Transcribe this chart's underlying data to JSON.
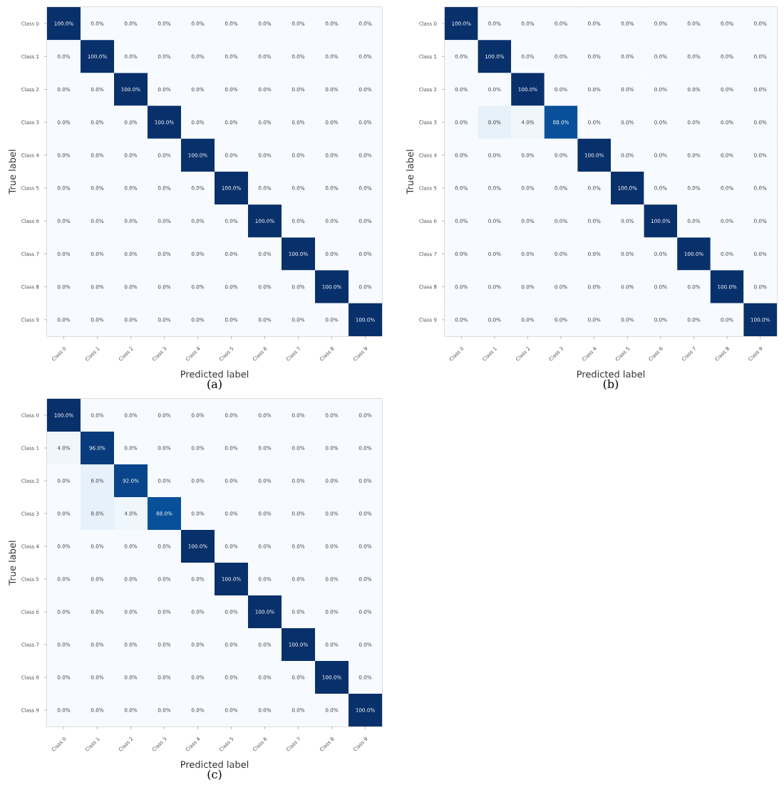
{
  "chart_data": [
    {
      "type": "heatmap",
      "xlabel": "Predicted label",
      "ylabel": "True label",
      "annotations": [
        "(a)"
      ],
      "categories": [
        "Class 0",
        "Class 1",
        "Class 2",
        "Class 3",
        "Class 4",
        "Class 5",
        "Class 6",
        "Class 7",
        "Class 8",
        "Class 9"
      ],
      "y_categories": [
        "Class 0",
        "Class 1",
        "Class 2",
        "Class 3",
        "Class 4",
        "Class 5",
        "Class 6",
        "Class 7",
        "Class 8",
        "Class 9"
      ],
      "cells": [
        [
          100,
          0,
          0,
          0,
          0,
          0,
          0,
          0,
          0,
          0
        ],
        [
          0,
          100,
          0,
          0,
          0,
          0,
          0,
          0,
          0,
          0
        ],
        [
          0,
          0,
          100,
          0,
          0,
          0,
          0,
          0,
          0,
          0
        ],
        [
          0,
          0,
          0,
          100,
          0,
          0,
          0,
          0,
          0,
          0
        ],
        [
          0,
          0,
          0,
          0,
          100,
          0,
          0,
          0,
          0,
          0
        ],
        [
          0,
          0,
          0,
          0,
          0,
          100,
          0,
          0,
          0,
          0
        ],
        [
          0,
          0,
          0,
          0,
          0,
          0,
          100,
          0,
          0,
          0
        ],
        [
          0,
          0,
          0,
          0,
          0,
          0,
          0,
          100,
          0,
          0
        ],
        [
          0,
          0,
          0,
          0,
          0,
          0,
          0,
          0,
          100,
          0
        ],
        [
          0,
          0,
          0,
          0,
          0,
          0,
          0,
          0,
          0,
          100
        ]
      ],
      "cell_labels": [
        [
          "100.0%",
          "0.0%",
          "0.0%",
          "0.0%",
          "0.0%",
          "0.0%",
          "0.0%",
          "0.0%",
          "0.0%",
          "0.0%"
        ],
        [
          "0.0%",
          "100.0%",
          "0.0%",
          "0.0%",
          "0.0%",
          "0.0%",
          "0.0%",
          "0.0%",
          "0.0%",
          "0.0%"
        ],
        [
          "0.0%",
          "0.0%",
          "100.0%",
          "0.0%",
          "0.0%",
          "0.0%",
          "0.0%",
          "0.0%",
          "0.0%",
          "0.0%"
        ],
        [
          "0.0%",
          "0.0%",
          "0.0%",
          "100.0%",
          "0.0%",
          "0.0%",
          "0.0%",
          "0.0%",
          "0.0%",
          "0.0%"
        ],
        [
          "0.0%",
          "0.0%",
          "0.0%",
          "0.0%",
          "100.0%",
          "0.0%",
          "0.0%",
          "0.0%",
          "0.0%",
          "0.0%"
        ],
        [
          "0.0%",
          "0.0%",
          "0.0%",
          "0.0%",
          "0.0%",
          "100.0%",
          "0.0%",
          "0.0%",
          "0.0%",
          "0.0%"
        ],
        [
          "0.0%",
          "0.0%",
          "0.0%",
          "0.0%",
          "0.0%",
          "0.0%",
          "100.0%",
          "0.0%",
          "0.0%",
          "0.0%"
        ],
        [
          "0.0%",
          "0.0%",
          "0.0%",
          "0.0%",
          "0.0%",
          "0.0%",
          "0.0%",
          "100.0%",
          "0.0%",
          "0.0%"
        ],
        [
          "0.0%",
          "0.0%",
          "0.0%",
          "0.0%",
          "0.0%",
          "0.0%",
          "0.0%",
          "0.0%",
          "100.0%",
          "0.0%"
        ],
        [
          "0.0%",
          "0.0%",
          "0.0%",
          "0.0%",
          "0.0%",
          "0.0%",
          "0.0%",
          "0.0%",
          "0.0%",
          "100.0%"
        ]
      ]
    },
    {
      "type": "heatmap",
      "xlabel": "Predicted label",
      "ylabel": "True label",
      "annotations": [
        "(b)"
      ],
      "categories": [
        "Class 0",
        "Class 1",
        "Class 2",
        "Class 3",
        "Class 4",
        "Class 5",
        "Class 6",
        "Class 7",
        "Class 8",
        "Class 9"
      ],
      "y_categories": [
        "Class 0",
        "Class 1",
        "Class 2",
        "Class 3",
        "Class 4",
        "Class 5",
        "Class 6",
        "Class 7",
        "Class 8",
        "Class 9"
      ],
      "cells": [
        [
          100,
          0,
          0,
          0,
          0,
          0,
          0,
          0,
          0,
          0
        ],
        [
          0,
          100,
          0,
          0,
          0,
          0,
          0,
          0,
          0,
          0
        ],
        [
          0,
          0,
          100,
          0,
          0,
          0,
          0,
          0,
          0,
          0
        ],
        [
          0,
          8,
          4,
          88,
          0,
          0,
          0,
          0,
          0,
          0
        ],
        [
          0,
          0,
          0,
          0,
          100,
          0,
          0,
          0,
          0,
          0
        ],
        [
          0,
          0,
          0,
          0,
          0,
          100,
          0,
          0,
          0,
          0
        ],
        [
          0,
          0,
          0,
          0,
          0,
          0,
          100,
          0,
          0,
          0
        ],
        [
          0,
          0,
          0,
          0,
          0,
          0,
          0,
          100,
          0,
          0
        ],
        [
          0,
          0,
          0,
          0,
          0,
          0,
          0,
          0,
          100,
          0
        ],
        [
          0,
          0,
          0,
          0,
          0,
          0,
          0,
          0,
          0,
          100
        ]
      ],
      "cell_labels": [
        [
          "100.0%",
          "0.0%",
          "0.0%",
          "0.0%",
          "0.0%",
          "0.0%",
          "0.0%",
          "0.0%",
          "0.0%",
          "0.0%"
        ],
        [
          "0.0%",
          "100.0%",
          "0.0%",
          "0.0%",
          "0.0%",
          "0.0%",
          "0.0%",
          "0.0%",
          "0.0%",
          "0.0%"
        ],
        [
          "0.0%",
          "0.0%",
          "100.0%",
          "0.0%",
          "0.0%",
          "0.0%",
          "0.0%",
          "0.0%",
          "0.0%",
          "0.0%"
        ],
        [
          "0.0%",
          "8.0%",
          "4.0%",
          "88.0%",
          "0.0%",
          "0.0%",
          "0.0%",
          "0.0%",
          "0.0%",
          "0.0%"
        ],
        [
          "0.0%",
          "0.0%",
          "0.0%",
          "0.0%",
          "100.0%",
          "0.0%",
          "0.0%",
          "0.0%",
          "0.0%",
          "0.0%"
        ],
        [
          "0.0%",
          "0.0%",
          "0.0%",
          "0.0%",
          "0.0%",
          "100.0%",
          "0.0%",
          "0.0%",
          "0.0%",
          "0.0%"
        ],
        [
          "0.0%",
          "0.0%",
          "0.0%",
          "0.0%",
          "0.0%",
          "0.0%",
          "100.0%",
          "0.0%",
          "0.0%",
          "0.0%"
        ],
        [
          "0.0%",
          "0.0%",
          "0.0%",
          "0.0%",
          "0.0%",
          "0.0%",
          "0.0%",
          "100.0%",
          "0.0%",
          "0.0%"
        ],
        [
          "0.0%",
          "0.0%",
          "0.0%",
          "0.0%",
          "0.0%",
          "0.0%",
          "0.0%",
          "0.0%",
          "100.0%",
          "0.0%"
        ],
        [
          "0.0%",
          "0.0%",
          "0.0%",
          "0.0%",
          "0.0%",
          "0.0%",
          "0.0%",
          "0.0%",
          "0.0%",
          "100.0%"
        ]
      ]
    },
    {
      "type": "heatmap",
      "xlabel": "Predicted label",
      "ylabel": "True label",
      "annotations": [
        "(c)"
      ],
      "categories": [
        "Class 0",
        "Class 1",
        "Class 2",
        "Class 3",
        "Class 4",
        "Class 5",
        "Class 6",
        "Class 7",
        "Class 8",
        "Class 9"
      ],
      "y_categories": [
        "Class 0",
        "Class 1",
        "Class 2",
        "Class 3",
        "Class 4",
        "Class 5",
        "Class 6",
        "Class 7",
        "Class 8",
        "Class 9"
      ],
      "cells": [
        [
          100,
          0,
          0,
          0,
          0,
          0,
          0,
          0,
          0,
          0
        ],
        [
          4,
          96,
          0,
          0,
          0,
          0,
          0,
          0,
          0,
          0
        ],
        [
          0,
          8,
          92,
          0,
          0,
          0,
          0,
          0,
          0,
          0
        ],
        [
          0,
          8,
          4,
          88,
          0,
          0,
          0,
          0,
          0,
          0
        ],
        [
          0,
          0,
          0,
          0,
          100,
          0,
          0,
          0,
          0,
          0
        ],
        [
          0,
          0,
          0,
          0,
          0,
          100,
          0,
          0,
          0,
          0
        ],
        [
          0,
          0,
          0,
          0,
          0,
          0,
          100,
          0,
          0,
          0
        ],
        [
          0,
          0,
          0,
          0,
          0,
          0,
          0,
          100,
          0,
          0
        ],
        [
          0,
          0,
          0,
          0,
          0,
          0,
          0,
          0,
          100,
          0
        ],
        [
          0,
          0,
          0,
          0,
          0,
          0,
          0,
          0,
          0,
          100
        ]
      ],
      "cell_labels": [
        [
          "100.0%",
          "0.0%",
          "0.0%",
          "0.0%",
          "0.0%",
          "0.0%",
          "0.0%",
          "0.0%",
          "0.0%",
          "0.0%"
        ],
        [
          "4.0%",
          "96.0%",
          "0.0%",
          "0.0%",
          "0.0%",
          "0.0%",
          "0.0%",
          "0.0%",
          "0.0%",
          "0.0%"
        ],
        [
          "0.0%",
          "8.0%",
          "92.0%",
          "0.0%",
          "0.0%",
          "0.0%",
          "0.0%",
          "0.0%",
          "0.0%",
          "0.0%"
        ],
        [
          "0.0%",
          "8.0%",
          "4.0%",
          "88.0%",
          "0.0%",
          "0.0%",
          "0.0%",
          "0.0%",
          "0.0%",
          "0.0%"
        ],
        [
          "0.0%",
          "0.0%",
          "0.0%",
          "0.0%",
          "100.0%",
          "0.0%",
          "0.0%",
          "0.0%",
          "0.0%",
          "0.0%"
        ],
        [
          "0.0%",
          "0.0%",
          "0.0%",
          "0.0%",
          "0.0%",
          "100.0%",
          "0.0%",
          "0.0%",
          "0.0%",
          "0.0%"
        ],
        [
          "0.0%",
          "0.0%",
          "0.0%",
          "0.0%",
          "0.0%",
          "0.0%",
          "100.0%",
          "0.0%",
          "0.0%",
          "0.0%"
        ],
        [
          "0.0%",
          "0.0%",
          "0.0%",
          "0.0%",
          "0.0%",
          "0.0%",
          "0.0%",
          "100.0%",
          "0.0%",
          "0.0%"
        ],
        [
          "0.0%",
          "0.0%",
          "0.0%",
          "0.0%",
          "0.0%",
          "0.0%",
          "0.0%",
          "0.0%",
          "100.0%",
          "0.0%"
        ],
        [
          "0.0%",
          "0.0%",
          "0.0%",
          "0.0%",
          "0.0%",
          "0.0%",
          "0.0%",
          "0.0%",
          "0.0%",
          "100.0%"
        ]
      ]
    }
  ]
}
